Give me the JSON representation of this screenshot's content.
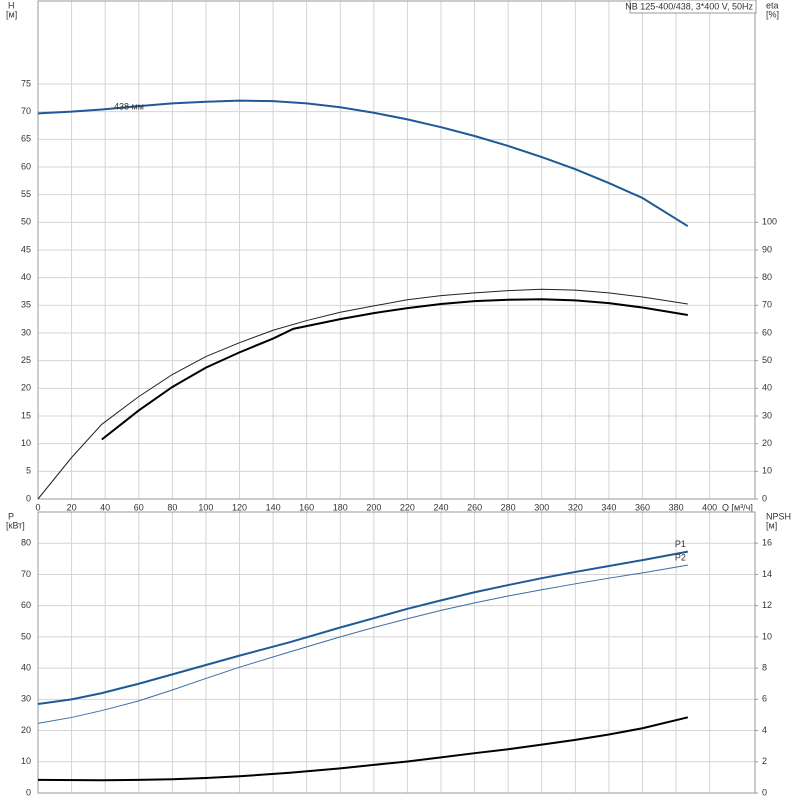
{
  "chart_data": [
    {
      "type": "line",
      "title": "NB 125-400/438, 3*400 V, 50Hz",
      "y_label": "H",
      "y_unit": "[м]",
      "y2_label": "eta",
      "y2_unit": "[%]",
      "x_label": "Q [м³/ч]",
      "xlim": [
        0,
        427
      ],
      "xticks": [
        0,
        20,
        40,
        60,
        80,
        100,
        120,
        140,
        160,
        180,
        200,
        220,
        240,
        260,
        280,
        300,
        320,
        340,
        360,
        380,
        400
      ],
      "ylim": [
        0,
        90
      ],
      "yticks": [
        0,
        5,
        10,
        15,
        20,
        25,
        30,
        35,
        40,
        45,
        50,
        55,
        60,
        65,
        70,
        75
      ],
      "y2lim": [
        0,
        180
      ],
      "y2ticks": [
        0,
        10,
        20,
        30,
        40,
        50,
        60,
        70,
        80,
        90,
        100
      ],
      "grid": true,
      "series": [
        {
          "color": "#1f5a96",
          "line_width": 2,
          "annotation": "438 мм",
          "x": [
            0,
            20,
            38,
            60,
            80,
            100,
            120,
            140,
            160,
            180,
            200,
            220,
            240,
            260,
            280,
            300,
            320,
            340,
            360,
            387
          ],
          "values": [
            69.7,
            70.0,
            70.4,
            71.0,
            71.5,
            71.8,
            72.0,
            71.9,
            71.5,
            70.8,
            69.8,
            68.6,
            67.2,
            65.6,
            63.8,
            61.8,
            59.6,
            57.1,
            54.4,
            49.3
          ]
        },
        {
          "color": "#222222",
          "line_width": 1,
          "axis": "y2",
          "x": [
            0,
            20,
            38,
            60,
            80,
            100,
            120,
            140,
            160,
            180,
            200,
            220,
            240,
            260,
            280,
            300,
            320,
            340,
            360,
            387
          ],
          "values": [
            0,
            15,
            27,
            37,
            45,
            51.5,
            56.5,
            61,
            64.5,
            67.5,
            69.8,
            72,
            73.5,
            74.5,
            75.3,
            75.8,
            75.5,
            74.5,
            73,
            70.5
          ]
        },
        {
          "color": "#000000",
          "line_width": 2,
          "axis": "y2",
          "x": [
            38,
            60,
            80,
            100,
            120,
            140,
            152,
            180,
            200,
            220,
            240,
            260,
            280,
            300,
            320,
            340,
            360,
            387
          ],
          "values": [
            21.5,
            32,
            40.5,
            47.5,
            53,
            58,
            61.5,
            65,
            67.2,
            69,
            70.5,
            71.5,
            72,
            72.2,
            71.8,
            70.8,
            69.2,
            66.5
          ]
        }
      ]
    },
    {
      "type": "line",
      "y_label": "P",
      "y_unit": "[кВт]",
      "y2_label": "NPSH",
      "y2_unit": "[м]",
      "xlim": [
        0,
        427
      ],
      "ylim": [
        0,
        90
      ],
      "yticks": [
        0,
        10,
        20,
        30,
        40,
        50,
        60,
        70,
        80
      ],
      "y2lim": [
        0,
        18
      ],
      "y2ticks": [
        0,
        2,
        4,
        6,
        8,
        10,
        12,
        14,
        16
      ],
      "grid": true,
      "series": [
        {
          "name": "P1",
          "color": "#1f5a96",
          "line_width": 2,
          "x": [
            0,
            20,
            38,
            60,
            80,
            100,
            120,
            150,
            180,
            200,
            220,
            240,
            260,
            280,
            300,
            320,
            340,
            360,
            387
          ],
          "values": [
            28.5,
            30,
            32,
            35,
            38,
            41,
            44,
            48.3,
            53,
            56,
            59,
            61.7,
            64.3,
            66.6,
            68.8,
            70.8,
            72.7,
            74.6,
            77.3
          ]
        },
        {
          "name": "P2",
          "color": "#3a6ea5",
          "line_width": 1,
          "x": [
            0,
            20,
            38,
            60,
            80,
            100,
            120,
            150,
            180,
            200,
            220,
            240,
            260,
            280,
            300,
            320,
            340,
            360,
            387
          ],
          "values": [
            22.3,
            24.2,
            26.4,
            29.5,
            33,
            36.7,
            40.3,
            45.2,
            50,
            53,
            55.8,
            58.5,
            60.9,
            63.1,
            65.1,
            67,
            68.8,
            70.5,
            73
          ]
        },
        {
          "color": "#000000",
          "line_width": 2,
          "axis": "y2",
          "x": [
            0,
            38,
            60,
            80,
            100,
            120,
            150,
            180,
            200,
            220,
            240,
            260,
            280,
            300,
            320,
            340,
            360,
            387
          ],
          "values": [
            0.84,
            0.82,
            0.84,
            0.88,
            0.96,
            1.07,
            1.3,
            1.58,
            1.8,
            2.02,
            2.28,
            2.55,
            2.8,
            3.1,
            3.4,
            3.75,
            4.15,
            4.85
          ]
        }
      ]
    }
  ]
}
